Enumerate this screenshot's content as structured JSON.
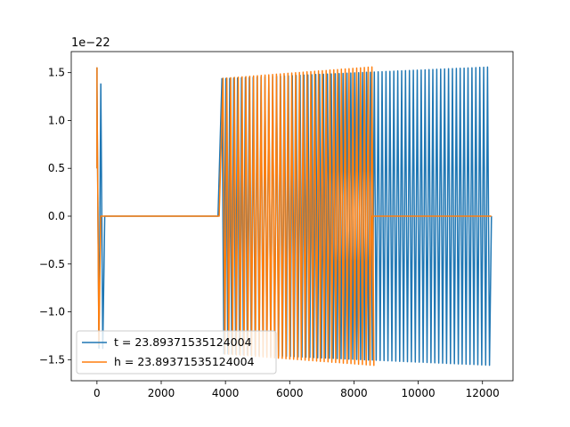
{
  "chart_data": {
    "type": "line",
    "title": "",
    "xlabel": "",
    "ylabel": "",
    "y_offset_text": "1e−22",
    "y_scale": 1e-22,
    "xlim": [
      -800,
      12950
    ],
    "ylim": [
      -1.72,
      1.72
    ],
    "xticks": [
      0,
      2000,
      4000,
      6000,
      8000,
      10000,
      12000
    ],
    "xtick_labels": [
      "0",
      "2000",
      "4000",
      "6000",
      "8000",
      "10000",
      "12000"
    ],
    "yticks": [
      -1.5,
      -1.0,
      -0.5,
      0.0,
      0.5,
      1.0,
      1.5
    ],
    "ytick_labels": [
      "−1.5",
      "−1.0",
      "−0.5",
      "0.0",
      "0.5",
      "1.0",
      "1.5"
    ],
    "grid": false,
    "legend_placement": "lower-left",
    "series": [
      {
        "name": "t = 23.89371535124004",
        "color": "#1f77b4",
        "oscillation_x_range": [
          0,
          12280
        ],
        "cycles": 101,
        "amplitude_start": 1.38,
        "amplitude_end": 1.56,
        "silent_segments": [
          [
            200,
            3840
          ]
        ],
        "initial_spike": 1.55
      },
      {
        "name": "h = 23.89371535124004",
        "color": "#ff7f0e",
        "oscillation_x_range": [
          0,
          8560
        ],
        "cycles": 72,
        "amplitude_start": 1.34,
        "amplitude_end": 1.56,
        "flat_segments": [
          [
            100,
            3840
          ],
          [
            8600,
            12280
          ]
        ],
        "initial_spike": 1.55
      }
    ]
  }
}
